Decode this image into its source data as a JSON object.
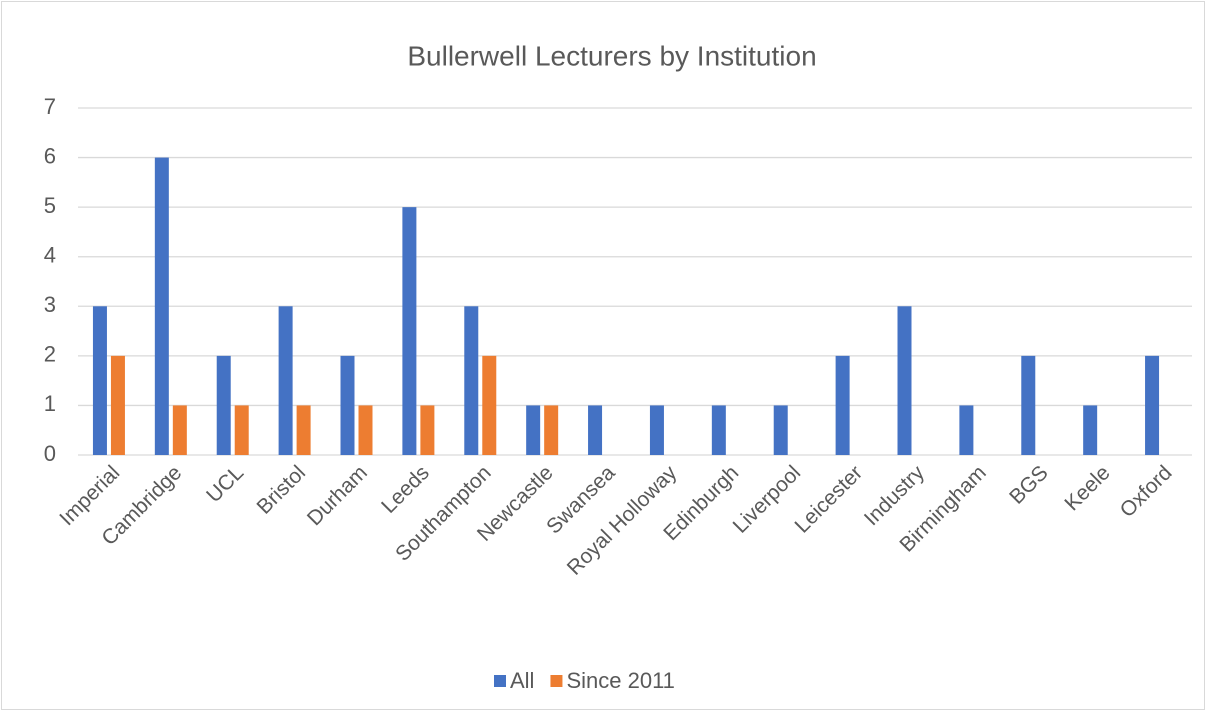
{
  "chart_data": {
    "type": "bar",
    "title": "Bullerwell Lecturers by Institution",
    "categories": [
      "Imperial",
      "Cambridge",
      "UCL",
      "Bristol",
      "Durham",
      "Leeds",
      "Southampton",
      "Newcastle",
      "Swansea",
      "Royal Holloway",
      "Edinburgh",
      "Liverpool",
      "Leicester",
      "Industry",
      "Birmingham",
      "BGS",
      "Keele",
      "Oxford"
    ],
    "series": [
      {
        "name": "All",
        "color": "#4472c4",
        "values": [
          3,
          6,
          2,
          3,
          2,
          5,
          3,
          1,
          1,
          1,
          1,
          1,
          2,
          3,
          1,
          2,
          1,
          2
        ]
      },
      {
        "name": "Since 2011",
        "color": "#ed7d31",
        "values": [
          2,
          1,
          1,
          1,
          1,
          1,
          2,
          1,
          0,
          0,
          0,
          0,
          0,
          0,
          0,
          0,
          0,
          0
        ]
      }
    ],
    "ylim": [
      0,
      7
    ],
    "yticks": [
      0,
      1,
      2,
      3,
      4,
      5,
      6,
      7
    ],
    "grid": true,
    "legend": "bottom"
  }
}
